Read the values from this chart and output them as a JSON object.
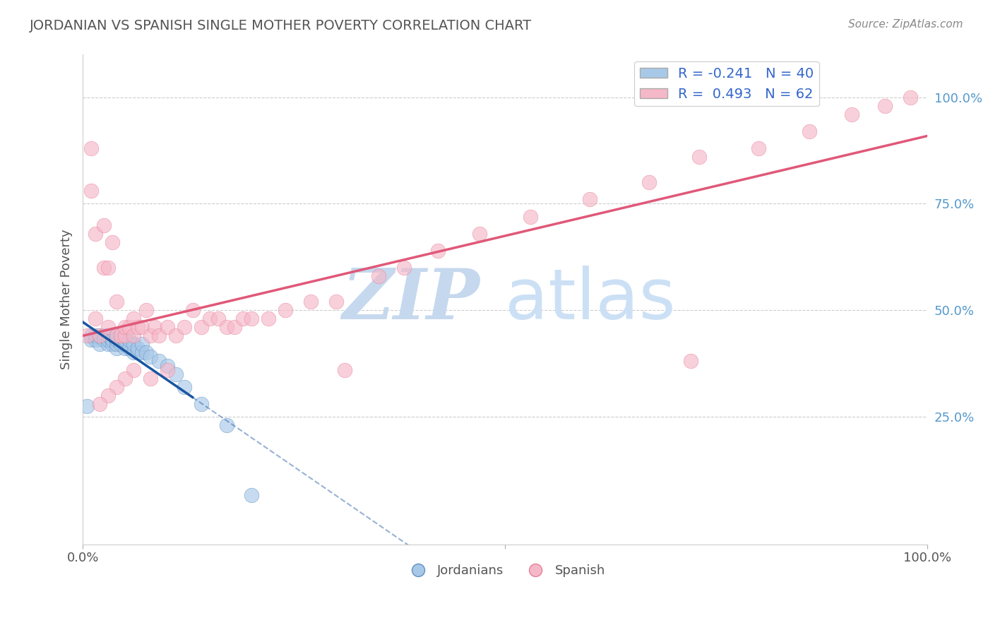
{
  "title": "JORDANIAN VS SPANISH SINGLE MOTHER POVERTY CORRELATION CHART",
  "source_text": "Source: ZipAtlas.com",
  "ylabel": "Single Mother Poverty",
  "watermark_zip": "ZIP",
  "watermark_atlas": "atlas",
  "xlim": [
    0.0,
    1.0
  ],
  "ylim": [
    -0.05,
    1.1
  ],
  "ytick_positions": [
    0.25,
    0.5,
    0.75,
    1.0
  ],
  "ytick_labels": [
    "25.0%",
    "50.0%",
    "75.0%",
    "100.0%"
  ],
  "xtick_positions": [
    0.0,
    0.5,
    1.0
  ],
  "xtick_labels": [
    "0.0%",
    "",
    "100.0%"
  ],
  "blue_color": "#a8c8e8",
  "pink_color": "#f5b8c8",
  "blue_edge_color": "#6090c0",
  "pink_edge_color": "#e88098",
  "blue_line_color": "#1a55a0",
  "pink_line_color": "#e05878",
  "background_color": "#ffffff",
  "grid_color": "#cccccc",
  "title_color": "#555555",
  "ytick_color": "#5599cc",
  "watermark_color_zip": "#c5d8ee",
  "watermark_color_atlas": "#cce0f5",
  "jordanians_x": [
    0.005,
    0.01,
    0.01,
    0.015,
    0.015,
    0.02,
    0.02,
    0.025,
    0.025,
    0.03,
    0.03,
    0.03,
    0.035,
    0.035,
    0.04,
    0.04,
    0.04,
    0.04,
    0.045,
    0.045,
    0.05,
    0.05,
    0.05,
    0.055,
    0.055,
    0.06,
    0.06,
    0.065,
    0.065,
    0.07,
    0.07,
    0.075,
    0.08,
    0.09,
    0.1,
    0.11,
    0.12,
    0.14,
    0.17,
    0.2
  ],
  "jordanians_y": [
    0.275,
    0.43,
    0.44,
    0.43,
    0.44,
    0.42,
    0.44,
    0.43,
    0.44,
    0.42,
    0.43,
    0.44,
    0.42,
    0.43,
    0.41,
    0.42,
    0.43,
    0.44,
    0.42,
    0.43,
    0.41,
    0.42,
    0.43,
    0.41,
    0.43,
    0.4,
    0.42,
    0.4,
    0.41,
    0.4,
    0.42,
    0.4,
    0.39,
    0.38,
    0.37,
    0.35,
    0.32,
    0.28,
    0.23,
    0.065
  ],
  "spanish_x": [
    0.005,
    0.01,
    0.01,
    0.015,
    0.015,
    0.02,
    0.025,
    0.025,
    0.03,
    0.03,
    0.035,
    0.04,
    0.04,
    0.045,
    0.05,
    0.05,
    0.055,
    0.06,
    0.06,
    0.065,
    0.07,
    0.075,
    0.08,
    0.085,
    0.09,
    0.1,
    0.11,
    0.12,
    0.13,
    0.14,
    0.15,
    0.16,
    0.17,
    0.18,
    0.19,
    0.2,
    0.22,
    0.24,
    0.27,
    0.3,
    0.35,
    0.38,
    0.42,
    0.47,
    0.53,
    0.6,
    0.67,
    0.73,
    0.8,
    0.86,
    0.91,
    0.95,
    0.98,
    0.72,
    0.31,
    0.1,
    0.08,
    0.06,
    0.05,
    0.04,
    0.03,
    0.02
  ],
  "spanish_y": [
    0.44,
    0.78,
    0.88,
    0.48,
    0.68,
    0.44,
    0.6,
    0.7,
    0.46,
    0.6,
    0.66,
    0.44,
    0.52,
    0.44,
    0.44,
    0.46,
    0.46,
    0.44,
    0.48,
    0.46,
    0.46,
    0.5,
    0.44,
    0.46,
    0.44,
    0.46,
    0.44,
    0.46,
    0.5,
    0.46,
    0.48,
    0.48,
    0.46,
    0.46,
    0.48,
    0.48,
    0.48,
    0.5,
    0.52,
    0.52,
    0.58,
    0.6,
    0.64,
    0.68,
    0.72,
    0.76,
    0.8,
    0.86,
    0.88,
    0.92,
    0.96,
    0.98,
    1.0,
    0.38,
    0.36,
    0.36,
    0.34,
    0.36,
    0.34,
    0.32,
    0.3,
    0.28
  ]
}
